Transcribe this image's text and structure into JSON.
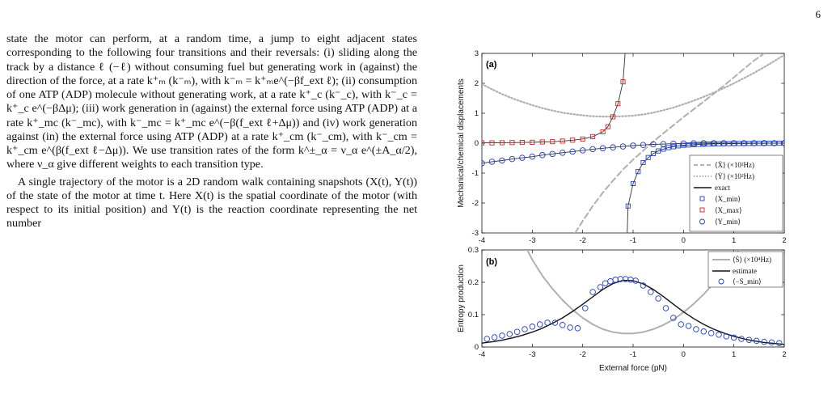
{
  "page": {
    "number": "6"
  },
  "text": {
    "paragraphs": [
      "state the motor can perform, at a random time, a jump to eight adjacent states corresponding to the following four transitions and their reversals: (i) sliding along the track by a distance ℓ (−ℓ) without consuming fuel but generating work in (against) the direction of the force, at a rate k⁺ₘ (k⁻ₘ), with k⁻ₘ = k⁺ₘe^(−βf_ext ℓ); (ii) consumption of one ATP (ADP) molecule without generating work, at a rate k⁺_c (k⁻_c), with k⁻_c = k⁺_c e^(−βΔμ); (iii) work generation in (against) the external force using ATP (ADP) at a rate k⁺_mc (k⁻_mc), with k⁻_mc = k⁺_mc e^(−β(f_ext ℓ+Δμ)) and (iv) work generation against (in) the external force using ATP (ADP) at a rate k⁺_cm (k⁻_cm), with k⁻_cm = k⁺_cm e^(β(f_ext ℓ−Δμ)). We use transition rates of the form k^±_α = ν_α e^(±A_α/2), where ν_α give different weights to each transition type.",
      "A single trajectory of the motor is a 2D random walk containing snapshots (X(t), Y(t)) of the state of the motor at time t. Here X(t) is the spatial coordinate of the motor (with respect to its initial position) and Y(t) is the reaction coordinate representing the net number"
    ]
  },
  "figure": {
    "xlabel": "External force (pN)",
    "xticks": [
      "-4",
      "-3",
      "-2",
      "-1",
      "0",
      "1",
      "2"
    ],
    "panel_a": {
      "tag": "(a)",
      "ylabel": "Mechanical/chemical displacements",
      "yticks": [
        "-3",
        "-2",
        "-1",
        "0",
        "1",
        "2",
        "3"
      ],
      "legend": [
        "⟨Ẋ⟩ (×10²Hz)",
        "⟨Ẏ⟩ (×10²Hz)",
        "exact",
        "⟨X_min⟩",
        "⟨X_max⟩",
        "⟨Y_min⟩"
      ]
    },
    "panel_b": {
      "tag": "(b)",
      "ylabel": "Entropy production",
      "yticks": [
        "0",
        "0.1",
        "0.2",
        "0.3"
      ],
      "legend": [
        "⟨Ṡ⟩ (×10⁴Hz)",
        "estimate",
        "⟨−S_min⟩"
      ]
    },
    "colors": {
      "xmin": "#1f3fbf",
      "xmax": "#d62020",
      "ymin": "#1f3fbf",
      "dashed": "#b0b0b0",
      "exact": "#111111"
    }
  },
  "chart_data": [
    {
      "type": "line",
      "title": "",
      "xlabel": "External force (pN)",
      "ylabel": "Mechanical/chemical displacements",
      "xlim": [
        -4,
        2
      ],
      "ylim": [
        -3,
        3
      ],
      "series": [
        {
          "name": "⟨X_min⟩",
          "marker": "square",
          "x": [
            -1.1,
            -1.0,
            -0.9,
            -0.8,
            -0.7,
            -0.6,
            -0.5,
            -0.4,
            -0.3,
            -0.2,
            -0.1,
            0.0,
            0.1,
            0.2,
            0.3,
            0.4,
            0.5,
            0.6,
            0.7,
            0.8,
            0.9,
            1.0,
            1.1,
            1.2,
            1.3,
            1.4,
            1.5,
            1.6,
            1.7,
            1.8,
            1.9,
            2.0
          ],
          "y": [
            -2.1,
            -1.35,
            -0.95,
            -0.65,
            -0.48,
            -0.35,
            -0.26,
            -0.2,
            -0.15,
            -0.12,
            -0.09,
            -0.07,
            -0.06,
            -0.05,
            -0.04,
            -0.035,
            -0.03,
            -0.025,
            -0.02,
            -0.018,
            -0.015,
            -0.013,
            -0.011,
            -0.01,
            -0.008,
            -0.007,
            -0.006,
            -0.005,
            -0.004,
            -0.003,
            -0.002,
            -0.002
          ]
        },
        {
          "name": "⟨X_max⟩",
          "marker": "square",
          "x": [
            -4.0,
            -3.8,
            -3.6,
            -3.4,
            -3.2,
            -3.0,
            -2.8,
            -2.6,
            -2.4,
            -2.2,
            -2.0,
            -1.8,
            -1.6,
            -1.5,
            -1.4,
            -1.3,
            -1.2
          ],
          "y": [
            0.01,
            0.01,
            0.015,
            0.02,
            0.025,
            0.03,
            0.04,
            0.05,
            0.07,
            0.1,
            0.14,
            0.22,
            0.38,
            0.55,
            0.88,
            1.32,
            2.05
          ]
        },
        {
          "name": "⟨Y_min⟩",
          "marker": "circle",
          "x": [
            -4.0,
            -3.8,
            -3.6,
            -3.4,
            -3.2,
            -3.0,
            -2.8,
            -2.6,
            -2.4,
            -2.2,
            -2.0,
            -1.8,
            -1.6,
            -1.4,
            -1.2,
            -1.0,
            -0.8,
            -0.6,
            -0.4,
            -0.2,
            0.0,
            0.2,
            0.4,
            0.6,
            0.8,
            1.0,
            1.2,
            1.4,
            1.6,
            1.8,
            2.0
          ],
          "y": [
            -0.67,
            -0.62,
            -0.58,
            -0.53,
            -0.49,
            -0.45,
            -0.4,
            -0.36,
            -0.32,
            -0.28,
            -0.24,
            -0.2,
            -0.17,
            -0.14,
            -0.11,
            -0.08,
            -0.06,
            -0.04,
            -0.03,
            -0.02,
            -0.01,
            -0.005,
            0.0,
            0.0,
            0.0,
            0.0,
            0.0,
            0.0,
            0.0,
            0.0,
            0.0
          ]
        },
        {
          "name": "⟨Ẋ⟩ (×10²Hz)",
          "style": "dashed",
          "x": [
            -2.15,
            -2.0,
            -1.8,
            -1.6,
            -1.4,
            -1.2,
            -1.0,
            -0.8,
            -0.6,
            -0.4,
            -0.2,
            0.0,
            0.2,
            0.4,
            0.6,
            0.8,
            1.0,
            1.2,
            1.4,
            1.6
          ],
          "y": [
            -3.0,
            -2.6,
            -2.1,
            -1.65,
            -1.25,
            -0.88,
            -0.55,
            -0.25,
            0.05,
            0.33,
            0.6,
            0.87,
            1.13,
            1.39,
            1.65,
            1.92,
            2.2,
            2.48,
            2.76,
            3.0
          ]
        },
        {
          "name": "⟨Ẏ⟩ (×10²Hz)",
          "style": "dotted",
          "x": [
            -4.0,
            -3.8,
            -3.6,
            -3.4,
            -3.2,
            -3.0,
            -2.8,
            -2.6,
            -2.4,
            -2.2,
            -2.0,
            -1.8,
            -1.6,
            -1.4,
            -1.2,
            -1.0,
            -0.8,
            -0.6,
            -0.4,
            -0.2,
            0.0,
            0.2,
            0.4,
            0.6,
            0.8,
            1.0,
            1.2,
            1.4,
            1.6,
            1.8,
            2.0
          ],
          "y": [
            1.97,
            1.8,
            1.64,
            1.5,
            1.38,
            1.27,
            1.17,
            1.09,
            1.02,
            0.97,
            0.93,
            0.9,
            0.89,
            0.89,
            0.9,
            0.92,
            0.96,
            1.02,
            1.1,
            1.19,
            1.3,
            1.42,
            1.55,
            1.69,
            1.84,
            2.0,
            2.17,
            2.35,
            2.54,
            2.74,
            2.95
          ]
        }
      ]
    },
    {
      "type": "line",
      "title": "",
      "xlabel": "External force (pN)",
      "ylabel": "Entropy production",
      "xlim": [
        -4,
        2
      ],
      "ylim": [
        0,
        0.3
      ],
      "series": [
        {
          "name": "⟨Ṡ⟩ (×10⁴Hz)",
          "style": "solid-gray",
          "x": [
            -3.1,
            -3.0,
            -2.8,
            -2.6,
            -2.4,
            -2.2,
            -2.0,
            -1.8,
            -1.6,
            -1.4,
            -1.2,
            -1.0,
            -0.8,
            -0.6,
            -0.4,
            -0.2,
            0.0,
            0.2,
            0.4,
            0.6,
            0.8,
            1.0,
            1.1
          ],
          "y": [
            0.3,
            0.27,
            0.22,
            0.18,
            0.145,
            0.115,
            0.09,
            0.07,
            0.055,
            0.046,
            0.042,
            0.042,
            0.046,
            0.055,
            0.068,
            0.085,
            0.107,
            0.133,
            0.163,
            0.197,
            0.235,
            0.277,
            0.3
          ]
        },
        {
          "name": "estimate",
          "style": "solid-black",
          "x": [
            -4.0,
            -3.8,
            -3.6,
            -3.4,
            -3.2,
            -3.0,
            -2.8,
            -2.6,
            -2.4,
            -2.2,
            -2.0,
            -1.8,
            -1.6,
            -1.4,
            -1.2,
            -1.0,
            -0.8,
            -0.6,
            -0.4,
            -0.2,
            0.0,
            0.2,
            0.4,
            0.6,
            0.8,
            1.0,
            1.2,
            1.4,
            1.6,
            1.8,
            2.0
          ],
          "y": [
            0.012,
            0.016,
            0.021,
            0.028,
            0.036,
            0.046,
            0.058,
            0.073,
            0.09,
            0.11,
            0.132,
            0.155,
            0.178,
            0.196,
            0.206,
            0.205,
            0.195,
            0.178,
            0.156,
            0.132,
            0.109,
            0.088,
            0.07,
            0.055,
            0.043,
            0.033,
            0.025,
            0.019,
            0.014,
            0.011,
            0.008
          ]
        },
        {
          "name": "⟨−S_min⟩",
          "marker": "circle",
          "x": [
            -3.9,
            -3.75,
            -3.6,
            -3.45,
            -3.3,
            -3.15,
            -3.0,
            -2.85,
            -2.7,
            -2.55,
            -2.4,
            -2.25,
            -2.1,
            -1.95,
            -1.8,
            -1.65,
            -1.55,
            -1.45,
            -1.35,
            -1.25,
            -1.15,
            -1.05,
            -0.95,
            -0.8,
            -0.65,
            -0.5,
            -0.35,
            -0.2,
            -0.05,
            0.1,
            0.25,
            0.4,
            0.55,
            0.7,
            0.85,
            1.0,
            1.15,
            1.3,
            1.45,
            1.6,
            1.75,
            1.9
          ],
          "y": [
            0.025,
            0.03,
            0.035,
            0.04,
            0.047,
            0.055,
            0.063,
            0.07,
            0.075,
            0.075,
            0.068,
            0.06,
            0.058,
            0.12,
            0.17,
            0.185,
            0.197,
            0.203,
            0.208,
            0.21,
            0.21,
            0.208,
            0.205,
            0.19,
            0.17,
            0.15,
            0.12,
            0.09,
            0.07,
            0.065,
            0.055,
            0.048,
            0.043,
            0.038,
            0.033,
            0.029,
            0.025,
            0.022,
            0.019,
            0.016,
            0.014,
            0.012
          ]
        }
      ]
    }
  ]
}
